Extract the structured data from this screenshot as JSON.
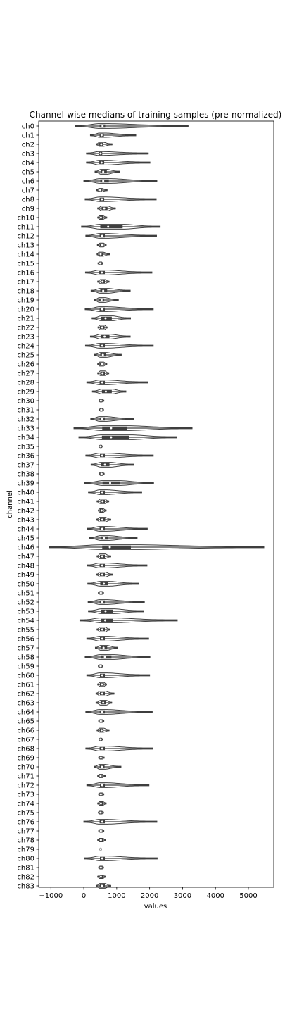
{
  "chart_data": {
    "type": "violin",
    "orientation": "horizontal",
    "title": "Channel-wise medians of training samples (pre-normalized)",
    "xlabel": "values",
    "ylabel": "channel",
    "xlim": [
      -1370,
      5770
    ],
    "xticks": [
      -1000,
      0,
      1000,
      2000,
      3000,
      4000,
      5000
    ],
    "grid": false,
    "colors": {
      "body": "#3f3f3f",
      "box": "#3f3f3f",
      "median": "#ffffff",
      "axis": "#000000"
    },
    "categories": [
      "ch0",
      "ch1",
      "ch2",
      "ch3",
      "ch4",
      "ch5",
      "ch6",
      "ch7",
      "ch8",
      "ch9",
      "ch10",
      "ch11",
      "ch12",
      "ch13",
      "ch14",
      "ch15",
      "ch16",
      "ch17",
      "ch18",
      "ch19",
      "ch20",
      "ch21",
      "ch22",
      "ch23",
      "ch24",
      "ch25",
      "ch26",
      "ch27",
      "ch28",
      "ch29",
      "ch30",
      "ch31",
      "ch32",
      "ch33",
      "ch34",
      "ch35",
      "ch36",
      "ch37",
      "ch38",
      "ch39",
      "ch40",
      "ch41",
      "ch42",
      "ch43",
      "ch44",
      "ch45",
      "ch46",
      "ch47",
      "ch48",
      "ch49",
      "ch50",
      "ch51",
      "ch52",
      "ch53",
      "ch54",
      "ch55",
      "ch56",
      "ch57",
      "ch58",
      "ch59",
      "ch60",
      "ch61",
      "ch62",
      "ch63",
      "ch64",
      "ch65",
      "ch66",
      "ch67",
      "ch68",
      "ch69",
      "ch70",
      "ch71",
      "ch72",
      "ch73",
      "ch74",
      "ch75",
      "ch76",
      "ch77",
      "ch78",
      "ch79",
      "ch80",
      "ch81",
      "ch82",
      "ch83"
    ],
    "distributions": [
      {
        "min": -250,
        "q1": 480,
        "median": 570,
        "q3": 650,
        "max": 3170
      },
      {
        "min": 200,
        "q1": 480,
        "median": 540,
        "q3": 610,
        "max": 1580
      },
      {
        "min": 380,
        "q1": 470,
        "median": 530,
        "q3": 590,
        "max": 860
      },
      {
        "min": 80,
        "q1": 450,
        "median": 510,
        "q3": 560,
        "max": 1960
      },
      {
        "min": 80,
        "q1": 470,
        "median": 540,
        "q3": 620,
        "max": 2010
      },
      {
        "min": 340,
        "q1": 520,
        "median": 590,
        "q3": 700,
        "max": 1080
      },
      {
        "min": 0,
        "q1": 500,
        "median": 590,
        "q3": 760,
        "max": 2220
      },
      {
        "min": 390,
        "q1": 460,
        "median": 500,
        "q3": 550,
        "max": 710
      },
      {
        "min": 40,
        "q1": 480,
        "median": 550,
        "q3": 620,
        "max": 2200
      },
      {
        "min": 420,
        "q1": 540,
        "median": 620,
        "q3": 720,
        "max": 960
      },
      {
        "min": 420,
        "q1": 480,
        "median": 520,
        "q3": 580,
        "max": 700
      },
      {
        "min": -70,
        "q1": 500,
        "median": 740,
        "q3": 1180,
        "max": 2320
      },
      {
        "min": 60,
        "q1": 480,
        "median": 560,
        "q3": 640,
        "max": 2210
      },
      {
        "min": 410,
        "q1": 490,
        "median": 550,
        "q3": 600,
        "max": 680
      },
      {
        "min": 400,
        "q1": 460,
        "median": 510,
        "q3": 580,
        "max": 780
      },
      {
        "min": 430,
        "q1": 470,
        "median": 500,
        "q3": 540,
        "max": 580
      },
      {
        "min": 50,
        "q1": 470,
        "median": 550,
        "q3": 640,
        "max": 2070
      },
      {
        "min": 420,
        "q1": 510,
        "median": 570,
        "q3": 640,
        "max": 770
      },
      {
        "min": 220,
        "q1": 500,
        "median": 590,
        "q3": 710,
        "max": 1410
      },
      {
        "min": 310,
        "q1": 470,
        "median": 540,
        "q3": 620,
        "max": 1050
      },
      {
        "min": 40,
        "q1": 480,
        "median": 560,
        "q3": 640,
        "max": 2110
      },
      {
        "min": 250,
        "q1": 530,
        "median": 660,
        "q3": 850,
        "max": 1420
      },
      {
        "min": 430,
        "q1": 490,
        "median": 560,
        "q3": 630,
        "max": 710
      },
      {
        "min": 200,
        "q1": 510,
        "median": 630,
        "q3": 780,
        "max": 1410
      },
      {
        "min": 50,
        "q1": 480,
        "median": 560,
        "q3": 640,
        "max": 2110
      },
      {
        "min": 320,
        "q1": 500,
        "median": 580,
        "q3": 670,
        "max": 1140
      },
      {
        "min": 420,
        "q1": 480,
        "median": 550,
        "q3": 600,
        "max": 700
      },
      {
        "min": 420,
        "q1": 500,
        "median": 570,
        "q3": 640,
        "max": 760
      },
      {
        "min": 90,
        "q1": 480,
        "median": 560,
        "q3": 640,
        "max": 1940
      },
      {
        "min": 260,
        "q1": 550,
        "median": 670,
        "q3": 850,
        "max": 1280
      },
      {
        "min": 460,
        "q1": 490,
        "median": 520,
        "q3": 550,
        "max": 610
      },
      {
        "min": 470,
        "q1": 500,
        "median": 530,
        "q3": 560,
        "max": 600
      },
      {
        "min": 210,
        "q1": 480,
        "median": 560,
        "q3": 640,
        "max": 1520
      },
      {
        "min": -300,
        "q1": 560,
        "median": 830,
        "q3": 1310,
        "max": 3290
      },
      {
        "min": -150,
        "q1": 550,
        "median": 830,
        "q3": 1380,
        "max": 2820
      },
      {
        "min": 460,
        "q1": 490,
        "median": 510,
        "q3": 540,
        "max": 560
      },
      {
        "min": 60,
        "q1": 490,
        "median": 560,
        "q3": 640,
        "max": 2110
      },
      {
        "min": 220,
        "q1": 520,
        "median": 640,
        "q3": 780,
        "max": 1510
      },
      {
        "min": 460,
        "q1": 500,
        "median": 540,
        "q3": 580,
        "max": 620
      },
      {
        "min": 20,
        "q1": 570,
        "median": 800,
        "q3": 1090,
        "max": 2120
      },
      {
        "min": 140,
        "q1": 490,
        "median": 560,
        "q3": 640,
        "max": 1760
      },
      {
        "min": 400,
        "q1": 500,
        "median": 570,
        "q3": 640,
        "max": 760
      },
      {
        "min": 440,
        "q1": 490,
        "median": 540,
        "q3": 590,
        "max": 680
      },
      {
        "min": 380,
        "q1": 490,
        "median": 560,
        "q3": 650,
        "max": 820
      },
      {
        "min": 110,
        "q1": 480,
        "median": 560,
        "q3": 640,
        "max": 1930
      },
      {
        "min": 160,
        "q1": 510,
        "median": 610,
        "q3": 730,
        "max": 1620
      },
      {
        "min": -1050,
        "q1": 560,
        "median": 790,
        "q3": 1430,
        "max": 5470
      },
      {
        "min": 400,
        "q1": 490,
        "median": 560,
        "q3": 640,
        "max": 820
      },
      {
        "min": 100,
        "q1": 480,
        "median": 560,
        "q3": 640,
        "max": 1920
      },
      {
        "min": 390,
        "q1": 490,
        "median": 560,
        "q3": 640,
        "max": 880
      },
      {
        "min": 120,
        "q1": 500,
        "median": 610,
        "q3": 740,
        "max": 1670
      },
      {
        "min": 440,
        "q1": 490,
        "median": 520,
        "q3": 560,
        "max": 600
      },
      {
        "min": 130,
        "q1": 480,
        "median": 560,
        "q3": 640,
        "max": 1840
      },
      {
        "min": 140,
        "q1": 530,
        "median": 660,
        "q3": 880,
        "max": 1820
      },
      {
        "min": -120,
        "q1": 520,
        "median": 650,
        "q3": 880,
        "max": 2840
      },
      {
        "min": 400,
        "q1": 490,
        "median": 560,
        "q3": 640,
        "max": 800
      },
      {
        "min": 90,
        "q1": 490,
        "median": 560,
        "q3": 640,
        "max": 1970
      },
      {
        "min": 350,
        "q1": 510,
        "median": 600,
        "q3": 710,
        "max": 1020
      },
      {
        "min": 40,
        "q1": 510,
        "median": 640,
        "q3": 840,
        "max": 2010
      },
      {
        "min": 440,
        "q1": 480,
        "median": 510,
        "q3": 540,
        "max": 580
      },
      {
        "min": 90,
        "q1": 490,
        "median": 560,
        "q3": 640,
        "max": 2000
      },
      {
        "min": 420,
        "q1": 490,
        "median": 550,
        "q3": 610,
        "max": 690
      },
      {
        "min": 370,
        "q1": 490,
        "median": 560,
        "q3": 640,
        "max": 920
      },
      {
        "min": 370,
        "q1": 510,
        "median": 590,
        "q3": 680,
        "max": 850
      },
      {
        "min": 60,
        "q1": 480,
        "median": 560,
        "q3": 640,
        "max": 2080
      },
      {
        "min": 450,
        "q1": 490,
        "median": 520,
        "q3": 560,
        "max": 610
      },
      {
        "min": 400,
        "q1": 480,
        "median": 540,
        "q3": 600,
        "max": 770
      },
      {
        "min": 460,
        "q1": 490,
        "median": 510,
        "q3": 540,
        "max": 570
      },
      {
        "min": 60,
        "q1": 480,
        "median": 560,
        "q3": 640,
        "max": 2100
      },
      {
        "min": 450,
        "q1": 490,
        "median": 520,
        "q3": 560,
        "max": 620
      },
      {
        "min": 310,
        "q1": 480,
        "median": 550,
        "q3": 630,
        "max": 1130
      },
      {
        "min": 420,
        "q1": 470,
        "median": 510,
        "q3": 560,
        "max": 650
      },
      {
        "min": 90,
        "q1": 490,
        "median": 560,
        "q3": 640,
        "max": 1980
      },
      {
        "min": 450,
        "q1": 490,
        "median": 520,
        "q3": 560,
        "max": 610
      },
      {
        "min": 420,
        "q1": 480,
        "median": 520,
        "q3": 580,
        "max": 680
      },
      {
        "min": 440,
        "q1": 480,
        "median": 510,
        "q3": 550,
        "max": 600
      },
      {
        "min": 0,
        "q1": 480,
        "median": 560,
        "q3": 640,
        "max": 2220
      },
      {
        "min": 450,
        "q1": 490,
        "median": 520,
        "q3": 560,
        "max": 610
      },
      {
        "min": 420,
        "q1": 480,
        "median": 520,
        "q3": 580,
        "max": 660
      },
      {
        "min": 480,
        "q1": 500,
        "median": 510,
        "q3": 520,
        "max": 540
      },
      {
        "min": 10,
        "q1": 490,
        "median": 560,
        "q3": 640,
        "max": 2230
      },
      {
        "min": 450,
        "q1": 490,
        "median": 520,
        "q3": 560,
        "max": 600
      },
      {
        "min": 420,
        "q1": 480,
        "median": 520,
        "q3": 580,
        "max": 660
      },
      {
        "min": 380,
        "q1": 480,
        "median": 550,
        "q3": 640,
        "max": 820
      }
    ]
  }
}
